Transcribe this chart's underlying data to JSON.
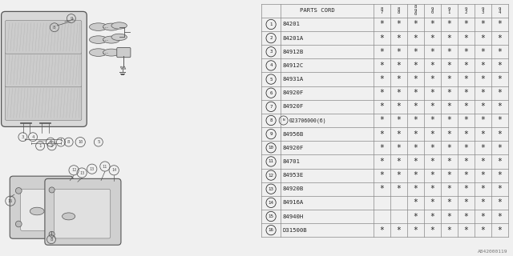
{
  "watermark": "A842000119",
  "bg_color": "#f0f0f0",
  "header_col0": "PARTS CORD",
  "year_cols": [
    "8\n7",
    "8\n8",
    "8\n9\n0",
    "9\n0",
    "9\n1",
    "9\n2",
    "9\n3",
    "9\n4"
  ],
  "rows": [
    [
      "1",
      "84201",
      true,
      true,
      true,
      true,
      true,
      true,
      true,
      true
    ],
    [
      "2",
      "84201A",
      true,
      true,
      true,
      true,
      true,
      true,
      true,
      true
    ],
    [
      "3",
      "84912B",
      true,
      true,
      true,
      true,
      true,
      true,
      true,
      true
    ],
    [
      "4",
      "84912C",
      true,
      true,
      true,
      true,
      true,
      true,
      true,
      true
    ],
    [
      "5",
      "84931A",
      true,
      true,
      true,
      true,
      true,
      true,
      true,
      true
    ],
    [
      "6",
      "84920F",
      true,
      true,
      true,
      true,
      true,
      true,
      true,
      true
    ],
    [
      "7",
      "84920F",
      true,
      true,
      true,
      true,
      true,
      true,
      true,
      true
    ],
    [
      "8",
      "N023706000(6)",
      true,
      true,
      true,
      true,
      true,
      true,
      true,
      true
    ],
    [
      "9",
      "84956B",
      true,
      true,
      true,
      true,
      true,
      true,
      true,
      true
    ],
    [
      "10",
      "84920F",
      true,
      true,
      true,
      true,
      true,
      true,
      true,
      true
    ],
    [
      "11",
      "84701",
      true,
      true,
      true,
      true,
      true,
      true,
      true,
      true
    ],
    [
      "12",
      "84953E",
      true,
      true,
      true,
      true,
      true,
      true,
      true,
      true
    ],
    [
      "13",
      "84920B",
      true,
      true,
      true,
      true,
      true,
      true,
      true,
      true
    ],
    [
      "14",
      "84916A",
      false,
      false,
      true,
      true,
      true,
      true,
      true,
      true
    ],
    [
      "15",
      "84940H",
      false,
      false,
      true,
      true,
      true,
      true,
      true,
      true
    ],
    [
      "16",
      "D31500B",
      true,
      true,
      true,
      true,
      true,
      true,
      true,
      true
    ]
  ],
  "table_line_color": "#888888",
  "text_color": "#222222",
  "font_size": 5.2,
  "star_font_size": 7.0
}
